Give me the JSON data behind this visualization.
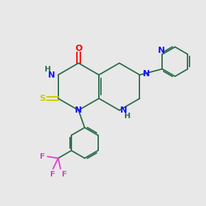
{
  "background_color": "#e8e8e8",
  "figsize": [
    3.0,
    3.0
  ],
  "dpi": 100,
  "colors": {
    "C": "#2d6e4e",
    "N": "#1414ff",
    "O": "#ff0000",
    "S": "#cccc00",
    "F": "#e040cc",
    "H_label": "#2d6e4e"
  },
  "lw": 1.4,
  "fs": 9,
  "fs_small": 8
}
